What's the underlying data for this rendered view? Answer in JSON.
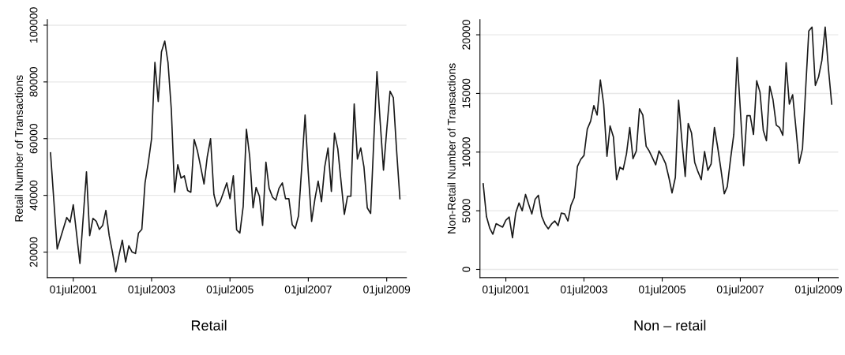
{
  "chart_data": [
    {
      "type": "line",
      "ylabel": "Retail Number of Transactions",
      "annotations": [
        "Retail"
      ],
      "grid": "y",
      "xlim": [
        "2000-11-01",
        "2010-01-01"
      ],
      "xticks": [
        {
          "value": "2001-07-01",
          "label": "01jul2001"
        },
        {
          "value": "2003-07-01",
          "label": "01jul2003"
        },
        {
          "value": "2005-07-01",
          "label": "01jul2005"
        },
        {
          "value": "2007-07-01",
          "label": "01jul2007"
        },
        {
          "value": "2009-07-01",
          "label": "01jul2009"
        }
      ],
      "ylim": [
        11000,
        102000
      ],
      "yticks": [
        20000,
        40000,
        60000,
        80000,
        100000
      ],
      "series": [
        {
          "color": "#1a1a1a",
          "x": [
            "2000-12",
            "2001-02",
            "2001-05",
            "2001-06",
            "2001-07",
            "2001-09",
            "2001-11",
            "2001-12",
            "2002-01",
            "2002-02",
            "2002-03",
            "2002-04",
            "2002-05",
            "2002-06",
            "2002-07",
            "2002-08",
            "2002-09",
            "2002-10",
            "2002-11",
            "2002-12",
            "2003-01",
            "2003-02",
            "2003-03",
            "2003-04",
            "2003-05",
            "2003-06",
            "2003-07",
            "2003-08",
            "2003-09",
            "2003-10",
            "2003-11",
            "2003-12",
            "2004-01",
            "2004-02",
            "2004-03",
            "2004-04",
            "2004-05",
            "2004-06",
            "2004-07",
            "2004-08",
            "2004-09",
            "2004-10",
            "2004-11",
            "2004-12",
            "2005-01",
            "2005-02",
            "2005-03",
            "2005-04",
            "2005-05",
            "2005-06",
            "2005-07",
            "2005-08",
            "2005-09",
            "2005-10",
            "2005-11",
            "2005-12",
            "2006-01",
            "2006-02",
            "2006-03",
            "2006-04",
            "2006-05",
            "2006-06",
            "2006-07",
            "2006-08",
            "2006-09",
            "2006-10",
            "2006-11",
            "2006-12",
            "2007-01",
            "2007-02",
            "2007-03",
            "2007-04",
            "2007-05",
            "2007-06",
            "2007-07",
            "2007-08",
            "2007-09",
            "2007-10",
            "2007-11",
            "2007-12",
            "2008-01",
            "2008-02",
            "2008-03",
            "2008-04",
            "2008-05",
            "2008-06",
            "2008-07",
            "2008-08",
            "2008-09",
            "2008-10",
            "2008-11",
            "2008-12",
            "2009-01",
            "2009-02",
            "2009-03",
            "2009-04",
            "2009-05",
            "2009-06",
            "2009-07",
            "2009-08",
            "2009-09",
            "2009-10",
            "2009-11"
          ],
          "values": [
            55000,
            21100,
            32200,
            30500,
            36700,
            16000,
            48300,
            25800,
            31900,
            30800,
            28000,
            29400,
            34700,
            25800,
            20000,
            13000,
            19000,
            24200,
            16500,
            22200,
            20000,
            19500,
            26700,
            28000,
            44400,
            51700,
            60000,
            86900,
            73100,
            90600,
            94400,
            86900,
            70300,
            41100,
            50800,
            46100,
            46900,
            41700,
            41100,
            59700,
            55600,
            50000,
            44000,
            53600,
            60000,
            40300,
            36100,
            37800,
            41000,
            44400,
            38800,
            46900,
            27800,
            26700,
            36100,
            63300,
            53600,
            35600,
            42800,
            39700,
            29400,
            51700,
            42500,
            39400,
            38300,
            42500,
            44400,
            38800,
            38800,
            29700,
            28300,
            32800,
            50000,
            68300,
            48000,
            30800,
            38800,
            45000,
            37800,
            50000,
            56700,
            41400,
            61900,
            56400,
            45000,
            33300,
            39700,
            39700,
            72200,
            52800,
            56700,
            50000,
            35600,
            33600,
            58000,
            83600,
            66000,
            48900,
            63000,
            76700,
            74400,
            56000,
            38800
          ]
        }
      ]
    },
    {
      "type": "line",
      "ylabel": "Non-Retail Number of Transactions",
      "annotations": [
        "Non – retail"
      ],
      "grid": "y",
      "xlim": [
        "2000-11-01",
        "2010-01-01"
      ],
      "xticks": [
        {
          "value": "2001-07-01",
          "label": "01jul2001"
        },
        {
          "value": "2003-07-01",
          "label": "01jul2003"
        },
        {
          "value": "2005-07-01",
          "label": "01jul2005"
        },
        {
          "value": "2007-07-01",
          "label": "01jul2007"
        },
        {
          "value": "2009-07-01",
          "label": "01jul2009"
        }
      ],
      "ylim": [
        -700,
        21300
      ],
      "yticks": [
        0,
        5000,
        10000,
        15000,
        20000
      ],
      "series": [
        {
          "color": "#1a1a1a",
          "x": [
            "2000-12",
            "2001-01",
            "2001-02",
            "2001-03",
            "2001-04",
            "2001-06",
            "2001-07",
            "2001-08",
            "2001-09",
            "2001-10",
            "2001-11",
            "2001-12",
            "2002-01",
            "2002-02",
            "2002-03",
            "2002-04",
            "2002-05",
            "2002-06",
            "2002-07",
            "2002-08",
            "2002-09",
            "2002-10",
            "2002-11",
            "2002-12",
            "2003-01",
            "2003-02",
            "2003-03",
            "2003-04",
            "2003-05",
            "2003-06",
            "2003-07",
            "2003-08",
            "2003-09",
            "2003-10",
            "2003-11",
            "2003-12",
            "2004-01",
            "2004-02",
            "2004-03",
            "2004-04",
            "2004-05",
            "2004-06",
            "2004-07",
            "2004-08",
            "2004-09",
            "2004-10",
            "2004-11",
            "2004-12",
            "2005-01",
            "2005-02",
            "2005-03",
            "2005-04",
            "2005-05",
            "2005-06",
            "2005-07",
            "2005-08",
            "2005-09",
            "2005-10",
            "2005-11",
            "2005-12",
            "2006-01",
            "2006-02",
            "2006-03",
            "2006-04",
            "2006-05",
            "2006-06",
            "2006-07",
            "2006-08",
            "2006-09",
            "2006-10",
            "2006-11",
            "2006-12",
            "2007-01",
            "2007-02",
            "2007-03",
            "2007-04",
            "2007-05",
            "2007-06",
            "2007-07",
            "2007-08",
            "2007-09",
            "2007-10",
            "2007-11",
            "2007-12",
            "2008-01",
            "2008-02",
            "2008-03",
            "2008-04",
            "2008-05",
            "2008-06",
            "2008-07",
            "2008-08",
            "2008-09",
            "2008-10",
            "2008-11",
            "2008-12",
            "2009-01",
            "2009-02",
            "2009-03",
            "2009-04",
            "2009-05",
            "2009-06",
            "2009-07",
            "2009-08",
            "2009-09",
            "2009-10",
            "2009-11"
          ],
          "values": [
            7300,
            4500,
            3500,
            3000,
            3900,
            3600,
            4200,
            4460,
            2700,
            4800,
            5660,
            5000,
            6390,
            5500,
            4730,
            5990,
            6320,
            4530,
            3870,
            3460,
            3870,
            4130,
            3730,
            4800,
            4730,
            4130,
            5460,
            6120,
            8780,
            9380,
            9710,
            11960,
            12630,
            13960,
            13160,
            16150,
            14090,
            9640,
            12230,
            11300,
            7650,
            8710,
            8510,
            9840,
            12100,
            9440,
            10100,
            13690,
            13160,
            10500,
            10100,
            9500,
            8910,
            10100,
            9640,
            9040,
            7850,
            6520,
            7850,
            14420,
            10970,
            7920,
            12430,
            11630,
            9110,
            8310,
            7650,
            10040,
            8440,
            8980,
            12100,
            10440,
            8510,
            6450,
            7050,
            9440,
            11500,
            18070,
            13630,
            8840,
            13100,
            13100,
            11500,
            16080,
            15090,
            11830,
            10970,
            15620,
            14490,
            12300,
            12100,
            11430,
            17610,
            14090,
            14890,
            12100,
            9040,
            10300,
            15150,
            20330,
            20660,
            15680,
            16410,
            17810,
            20660,
            17150,
            14090
          ]
        }
      ]
    }
  ]
}
